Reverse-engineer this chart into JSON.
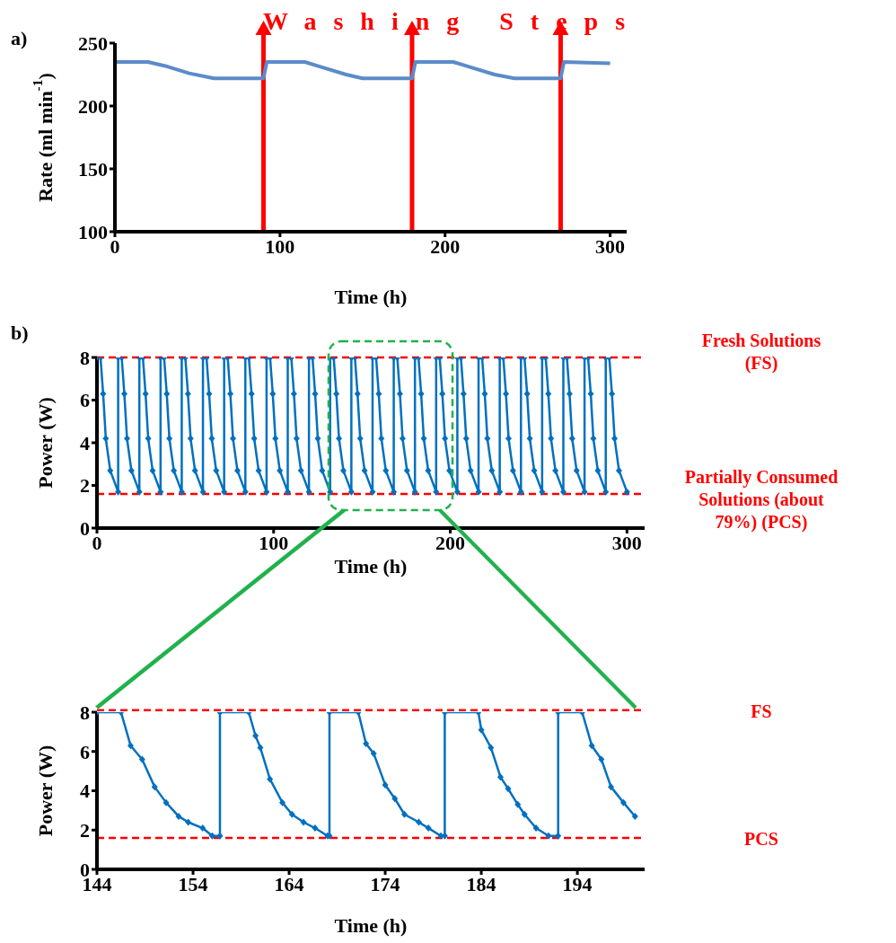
{
  "chart_data": [
    {
      "type": "line",
      "title": "a)",
      "xlabel": "Time (h)",
      "ylabel": "Rate (ml min$^{-1}$)",
      "xlim": [
        0,
        310
      ],
      "xticks": [
        0,
        100,
        200,
        300
      ],
      "ylim": [
        100,
        250
      ],
      "yticks": [
        100,
        150,
        200,
        250
      ],
      "marker": "none",
      "annotations": [
        "Washing Steps"
      ],
      "ref_lines": [
        {
          "axis": "x",
          "value": 90,
          "color": "#ff0000"
        },
        {
          "axis": "x",
          "value": 180,
          "color": "#ff0000"
        },
        {
          "axis": "x",
          "value": 270,
          "color": "#ff0000"
        }
      ],
      "series": [
        {
          "color": "#5b8bc9",
          "x": [
            0,
            20,
            30,
            45,
            60,
            90,
            92,
            115,
            125,
            140,
            150,
            180,
            182,
            205,
            215,
            230,
            242,
            270,
            272,
            300
          ],
          "values": [
            235,
            235,
            232,
            226,
            222,
            222,
            235,
            235,
            231,
            225,
            222,
            222,
            235,
            235,
            231,
            225,
            222,
            222,
            235,
            234
          ]
        }
      ]
    },
    {
      "type": "line",
      "title": "b)",
      "xlabel": "Time (h)",
      "ylabel": "Power (W)",
      "xlim": [
        0,
        310
      ],
      "xticks": [
        0,
        100,
        200,
        300
      ],
      "ylim": [
        0,
        8
      ],
      "yticks": [
        0,
        2,
        4,
        6,
        8
      ],
      "marker": "diamond",
      "ref_lines": [
        {
          "axis": "y",
          "value": 8,
          "label": "Fresh Solutions (FS)",
          "color": "#ff0000",
          "line_style": "dashed"
        },
        {
          "axis": "y",
          "value": 1.6,
          "label": "Partially Consumed Solutions (about 79%) (PCS)",
          "color": "#ff0000",
          "line_style": "dashed"
        }
      ],
      "series": [
        {
          "color": "#0070c0",
          "x": [
            0,
            2,
            3.5,
            5,
            7.5,
            12,
            12,
            14,
            15.5,
            17,
            19.5,
            24,
            24,
            26,
            27.5,
            29,
            31.5,
            36,
            36,
            38,
            39.5,
            41,
            43.5,
            48,
            48,
            50,
            51.5,
            53,
            55.5,
            60,
            60,
            62,
            63.5,
            65,
            67.5,
            72,
            72,
            74,
            75.5,
            77,
            79.5,
            84,
            84,
            86,
            87.5,
            89,
            91.5,
            96,
            96,
            98,
            99.5,
            101,
            103.5,
            108,
            108,
            110,
            111.5,
            113,
            115.5,
            120,
            120,
            122,
            123.5,
            125,
            127.5,
            132,
            132,
            134,
            135.5,
            137,
            139.5,
            144,
            144,
            146,
            147.5,
            149,
            151.5,
            156,
            156,
            158,
            159.5,
            161,
            163.5,
            168,
            168,
            170,
            171.5,
            173,
            175.5,
            180,
            180,
            182,
            183.5,
            185,
            187.5,
            192,
            192,
            194,
            195.5,
            197,
            199.5,
            204,
            204,
            206,
            207.5,
            209,
            211.5,
            216,
            216,
            218,
            219.5,
            221,
            223.5,
            228,
            228,
            230,
            231.5,
            233,
            235.5,
            240,
            240,
            242,
            243.5,
            245,
            247.5,
            252,
            252,
            254,
            255.5,
            257,
            259.5,
            264,
            264,
            266,
            267.5,
            269,
            271.5,
            276,
            276,
            278,
            279.5,
            281,
            283.5,
            288,
            288,
            290,
            291.5,
            293,
            295.5,
            300
          ],
          "values": [
            8,
            8,
            6.3,
            4.2,
            2.7,
            1.7,
            8,
            8,
            6.3,
            4.2,
            2.7,
            1.7,
            8,
            8,
            6.3,
            4.2,
            2.7,
            1.7,
            8,
            8,
            6.3,
            4.2,
            2.7,
            1.7,
            8,
            8,
            6.3,
            4.2,
            2.7,
            1.7,
            8,
            8,
            6.3,
            4.2,
            2.7,
            1.7,
            8,
            8,
            6.3,
            4.2,
            2.7,
            1.7,
            8,
            8,
            6.3,
            4.2,
            2.7,
            1.7,
            8,
            8,
            6.3,
            4.2,
            2.7,
            1.7,
            8,
            8,
            6.3,
            4.2,
            2.7,
            1.7,
            8,
            8,
            6.3,
            4.2,
            2.7,
            1.7,
            8,
            8,
            6.3,
            4.2,
            2.7,
            1.7,
            8,
            8,
            6.3,
            4.2,
            2.7,
            1.7,
            8,
            8,
            6.3,
            4.2,
            2.7,
            1.7,
            8,
            8,
            6.3,
            4.2,
            2.7,
            1.7,
            8,
            8,
            6.3,
            4.2,
            2.7,
            1.7,
            8,
            8,
            6.3,
            4.2,
            2.7,
            1.7,
            8,
            8,
            6.3,
            4.2,
            2.7,
            1.7,
            8,
            8,
            6.3,
            4.2,
            2.7,
            1.7,
            8,
            8,
            6.3,
            4.2,
            2.7,
            1.7,
            8,
            8,
            6.3,
            4.2,
            2.7,
            1.7,
            8,
            8,
            6.3,
            4.2,
            2.7,
            1.7,
            8,
            8,
            6.3,
            4.2,
            2.7,
            1.7,
            8,
            8,
            6.3,
            4.2,
            2.7,
            1.7,
            8,
            8,
            6.3,
            4.2,
            2.7,
            1.7
          ]
        }
      ]
    },
    {
      "type": "line",
      "xlabel": "Time (h)",
      "ylabel": "Power (W)",
      "xlim": [
        144,
        201
      ],
      "xticks": [
        144,
        154,
        164,
        174,
        184,
        194
      ],
      "ylim": [
        0,
        8
      ],
      "yticks": [
        0,
        2,
        4,
        6,
        8
      ],
      "marker": "diamond",
      "ref_lines": [
        {
          "axis": "y",
          "value": 8.1,
          "label": "FS",
          "color": "#ff0000",
          "line_style": "dashed"
        },
        {
          "axis": "y",
          "value": 1.6,
          "label": "PCS",
          "color": "#ff0000",
          "line_style": "dashed"
        }
      ],
      "series": [
        {
          "color": "#0070c0",
          "x": [
            144,
            146.5,
            147.5,
            148.7,
            150,
            151.2,
            152.5,
            153.5,
            155,
            156,
            156.8,
            156.8,
            159.8,
            160.5,
            161,
            162,
            163.3,
            164.3,
            165.5,
            166.7,
            168,
            168.2,
            168.2,
            171.2,
            172,
            172.8,
            174,
            175,
            176,
            177.5,
            178.5,
            179.8,
            180.2,
            180.2,
            183.7,
            184,
            185,
            186,
            186.8,
            187.8,
            188.5,
            189.7,
            191,
            192,
            192,
            194.5,
            195.5,
            196.5,
            197.5,
            198.8,
            200
          ],
          "values": [
            8,
            8,
            6.3,
            5.6,
            4.2,
            3.4,
            2.7,
            2.4,
            2.1,
            1.7,
            1.7,
            8,
            8,
            6.8,
            6.2,
            4.6,
            3.4,
            2.8,
            2.4,
            2.1,
            1.7,
            1.7,
            8,
            8,
            6.4,
            5.9,
            4.3,
            3.6,
            2.8,
            2.4,
            2.1,
            1.7,
            1.7,
            8,
            8,
            7.1,
            6.2,
            4.7,
            4.1,
            3.3,
            2.8,
            2.1,
            1.7,
            1.7,
            8,
            8,
            6.3,
            5.6,
            4.2,
            3.4,
            2.7
          ]
        }
      ]
    }
  ]
}
